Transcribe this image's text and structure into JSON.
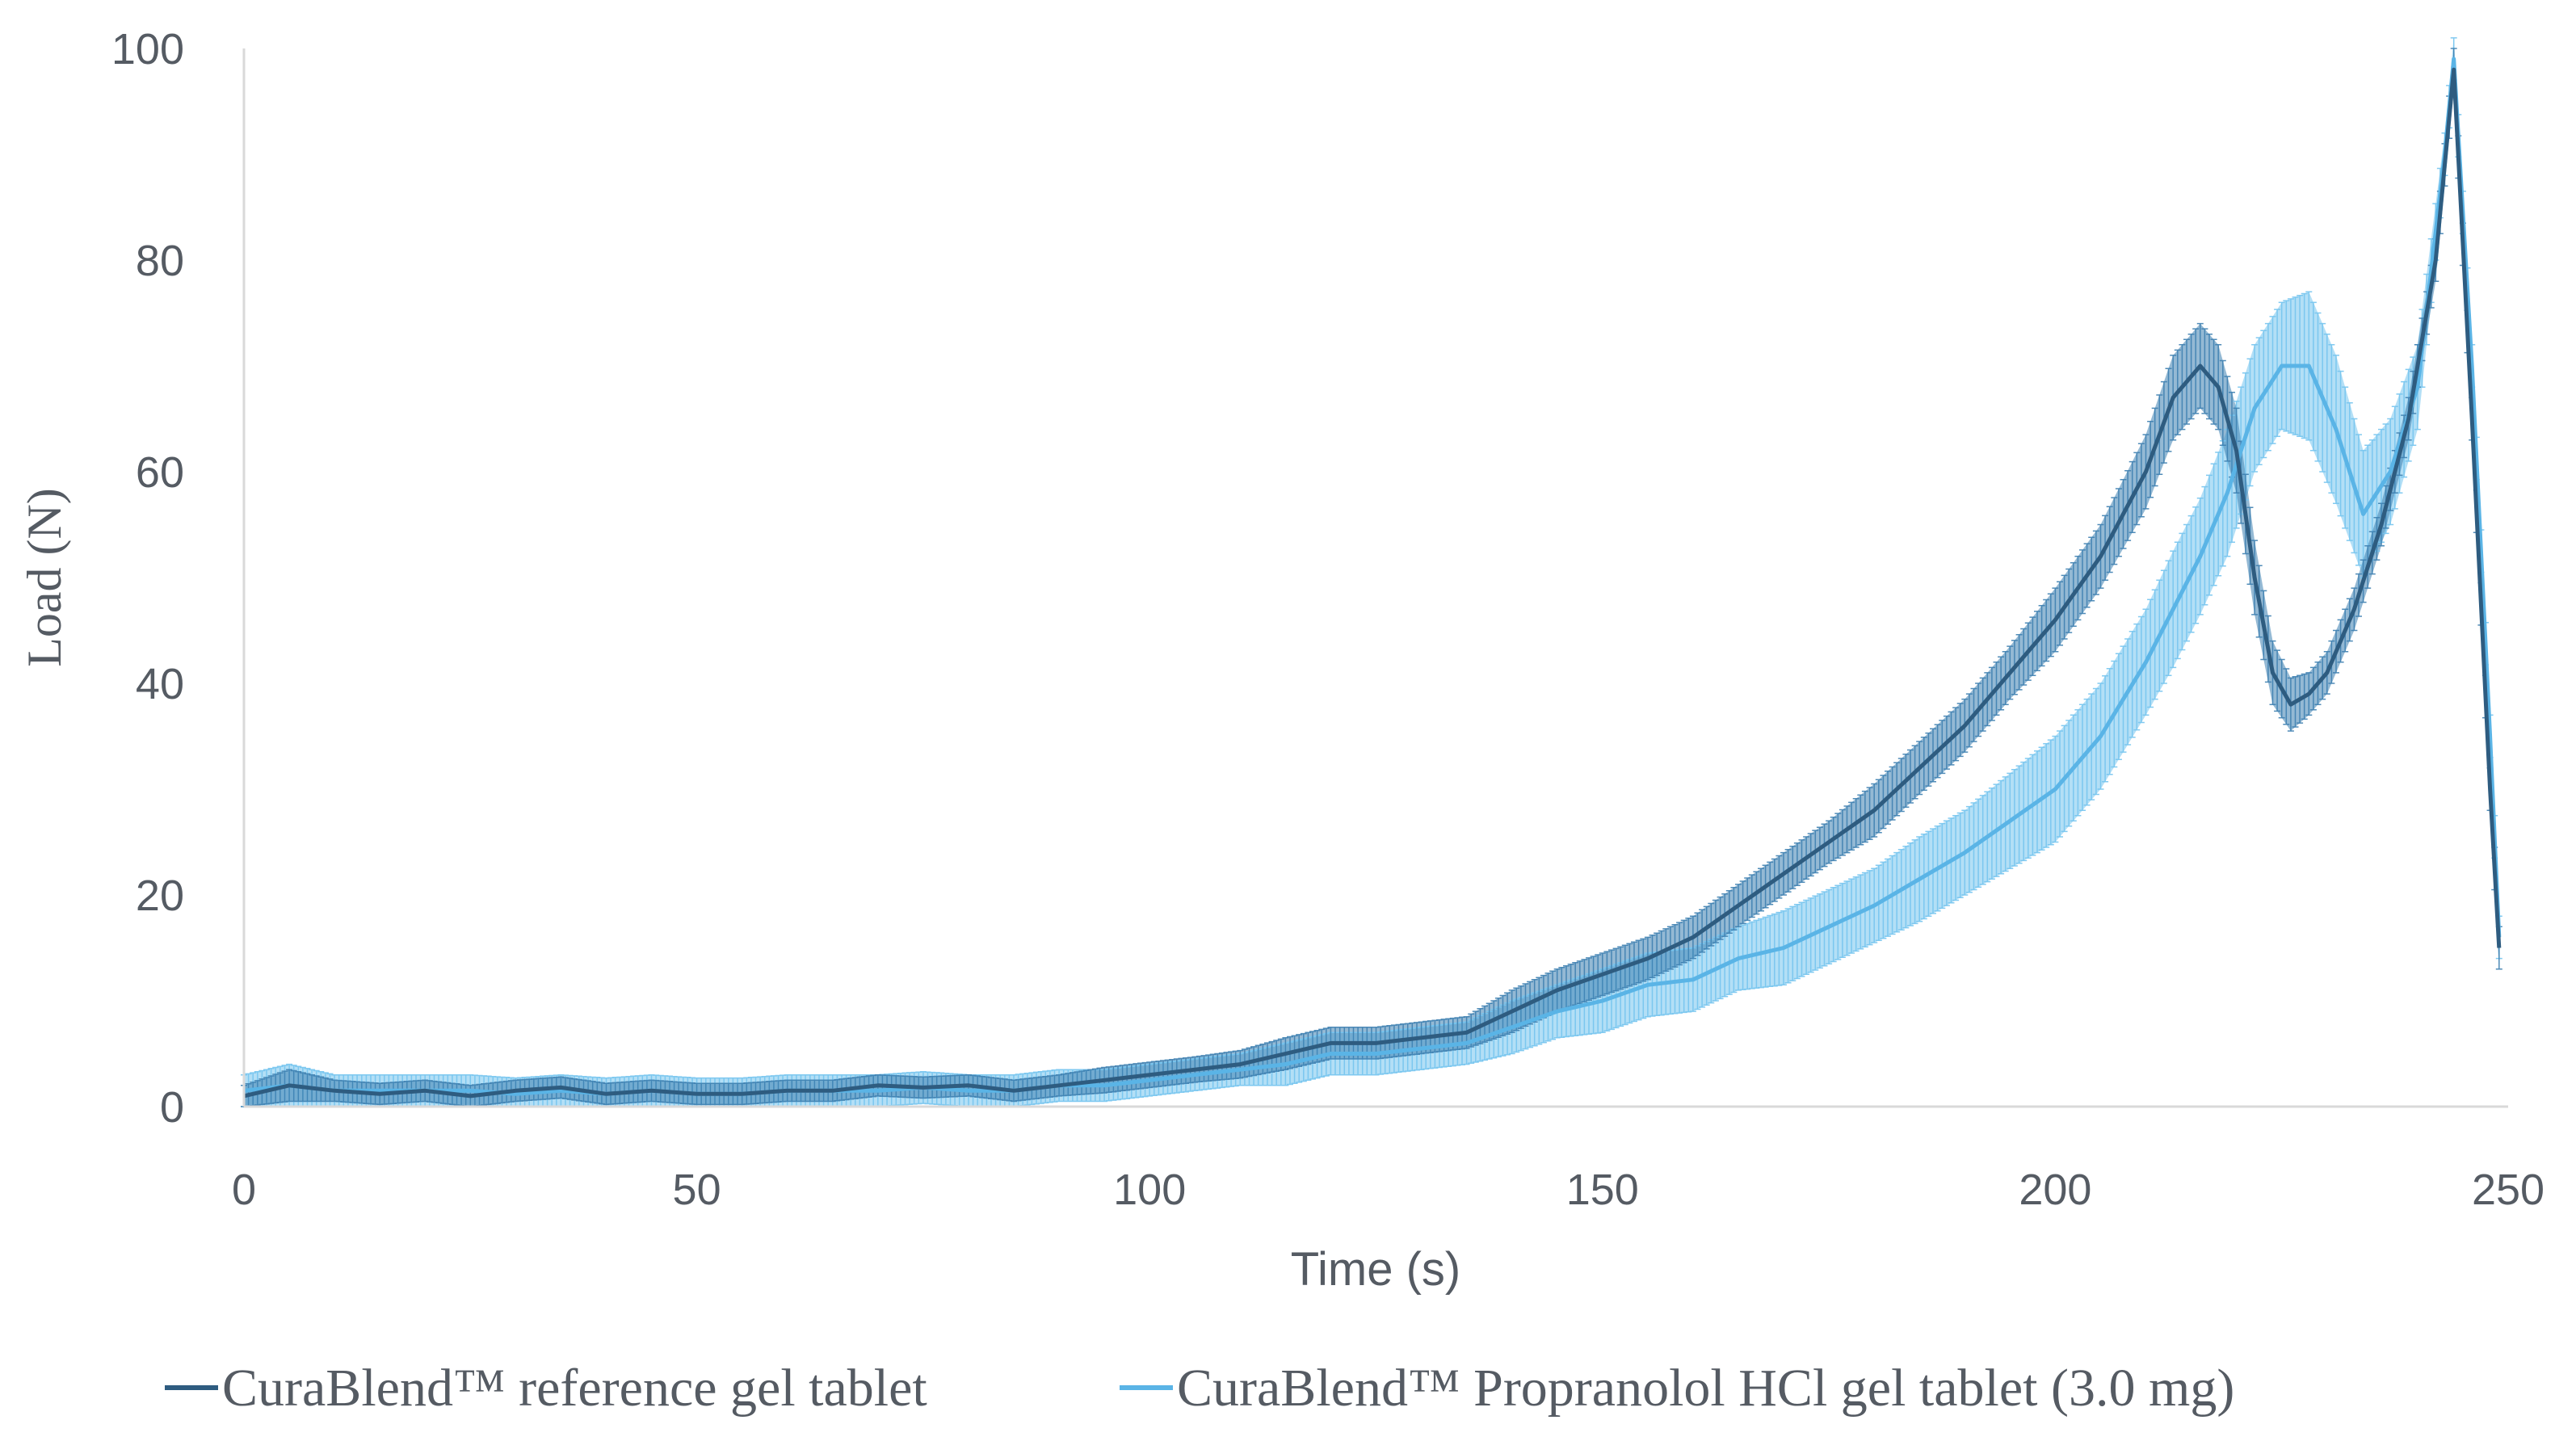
{
  "chart_data": {
    "type": "line",
    "title": "",
    "xlabel": "Time (s)",
    "ylabel": "Load (N)",
    "xlim": [
      0,
      250
    ],
    "ylim": [
      0,
      100
    ],
    "x_ticks": [
      0,
      50,
      100,
      150,
      200,
      250
    ],
    "y_ticks": [
      0,
      20,
      40,
      60,
      80,
      100
    ],
    "grid": false,
    "error_bars": true,
    "legend_position": "bottom",
    "series": [
      {
        "name": "CuraBlend™ reference gel tablet",
        "color": "#2e5c80",
        "band_color": "#3d7fb0",
        "x": [
          0,
          5,
          10,
          15,
          20,
          25,
          30,
          35,
          40,
          45,
          50,
          55,
          60,
          65,
          70,
          75,
          80,
          85,
          90,
          95,
          100,
          105,
          110,
          115,
          120,
          125,
          130,
          135,
          140,
          145,
          150,
          155,
          160,
          165,
          170,
          175,
          180,
          185,
          190,
          195,
          200,
          205,
          210,
          213,
          216,
          218,
          220,
          222,
          224,
          226,
          228,
          230,
          233,
          236,
          239,
          242,
          244,
          246,
          248,
          249
        ],
        "y": [
          1,
          2,
          1.5,
          1.2,
          1.5,
          1,
          1.5,
          1.8,
          1.2,
          1.5,
          1.2,
          1.2,
          1.5,
          1.5,
          2,
          1.8,
          2,
          1.5,
          2,
          2.5,
          3,
          3.5,
          4,
          5,
          6,
          6,
          6.5,
          7,
          9,
          11,
          12.5,
          14,
          16,
          19,
          22,
          25,
          28,
          32,
          36,
          41,
          46,
          52,
          60,
          67,
          70,
          68,
          62,
          50,
          41,
          38,
          39,
          41,
          47,
          55,
          65,
          80,
          98,
          65,
          30,
          15
        ],
        "err": [
          1,
          1.5,
          1,
          1,
          1,
          1,
          1,
          1,
          1,
          1,
          1,
          1,
          1,
          1,
          1,
          1,
          1,
          1,
          1,
          1.2,
          1.2,
          1.2,
          1.3,
          1.5,
          1.5,
          1.5,
          1.5,
          1.5,
          2,
          2,
          2,
          2,
          2,
          2,
          2,
          2,
          2.5,
          2.5,
          2.5,
          2.5,
          3,
          3,
          3.5,
          4,
          4,
          4,
          4,
          3.5,
          3,
          2.5,
          2,
          2,
          2,
          2,
          2,
          2,
          2,
          2,
          2,
          2
        ]
      },
      {
        "name": "CuraBlend™ Propranolol HCl gel tablet (3.0 mg)",
        "color": "#5ab4e6",
        "band_color": "#74c4ee",
        "x": [
          0,
          5,
          10,
          15,
          20,
          25,
          30,
          35,
          40,
          45,
          50,
          55,
          60,
          65,
          70,
          75,
          80,
          85,
          90,
          95,
          100,
          105,
          110,
          115,
          120,
          125,
          130,
          135,
          140,
          145,
          150,
          155,
          160,
          165,
          170,
          175,
          180,
          185,
          190,
          195,
          200,
          205,
          210,
          213,
          216,
          219,
          222,
          225,
          228,
          231,
          234,
          237,
          240,
          243,
          244,
          246,
          248,
          249
        ],
        "y": [
          1.5,
          2,
          1.5,
          1.5,
          1.5,
          1.5,
          1.2,
          1.5,
          1.2,
          1.5,
          1.2,
          1.2,
          1.5,
          1.5,
          1.5,
          1.8,
          1.5,
          1.5,
          2,
          2,
          2.5,
          3,
          3.5,
          4,
          5,
          5,
          5.5,
          6,
          7.5,
          9,
          10,
          11.5,
          12,
          14,
          15,
          17,
          19,
          21.5,
          24,
          27,
          30,
          35,
          42,
          47,
          52,
          58,
          66,
          70,
          70,
          64,
          56,
          60,
          68,
          90,
          99,
          70,
          35,
          16
        ],
        "err": [
          1.5,
          2,
          1.5,
          1.5,
          1.5,
          1.5,
          1.5,
          1.5,
          1.5,
          1.5,
          1.5,
          1.5,
          1.5,
          1.5,
          1.5,
          1.5,
          1.5,
          1.5,
          1.5,
          1.5,
          1.5,
          1.5,
          1.5,
          2,
          2,
          2,
          2,
          2,
          2.5,
          2.5,
          3,
          3,
          3,
          3,
          3.5,
          3.5,
          3.5,
          4,
          4,
          4.5,
          5,
          5,
          5,
          5.5,
          5.5,
          6,
          6,
          6,
          7,
          7,
          6,
          5,
          4,
          2,
          2,
          2,
          2,
          2
        ]
      }
    ]
  }
}
